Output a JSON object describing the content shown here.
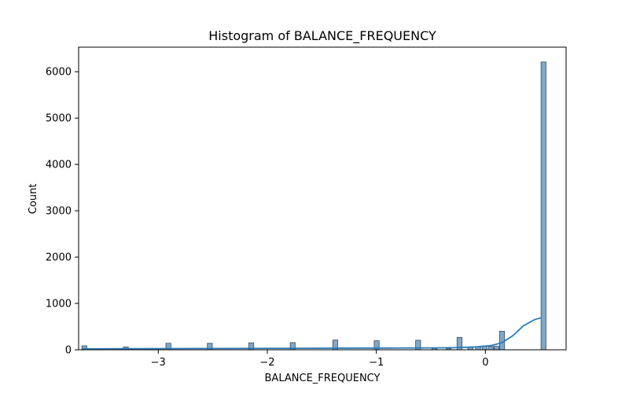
{
  "chart_data": {
    "type": "bar",
    "title": "Histogram of BALANCE_FREQUENCY",
    "xlabel": "BALANCE_FREQUENCY",
    "ylabel": "Count",
    "xlim": [
      -3.73,
      0.74
    ],
    "ylim": [
      0,
      6530
    ],
    "xticks": [
      -3,
      -2,
      -1,
      0
    ],
    "xtick_labels": [
      "−3",
      "−2",
      "−1",
      "0"
    ],
    "yticks": [
      0,
      1000,
      2000,
      3000,
      4000,
      5000,
      6000
    ],
    "ytick_labels": [
      "0",
      "1000",
      "2000",
      "3000",
      "4000",
      "5000",
      "6000"
    ],
    "bin_width": 0.0457,
    "bins": [
      {
        "x": -3.7,
        "count": 85
      },
      {
        "x": -3.32,
        "count": 60
      },
      {
        "x": -2.93,
        "count": 140
      },
      {
        "x": -2.55,
        "count": 140
      },
      {
        "x": -2.17,
        "count": 150
      },
      {
        "x": -1.79,
        "count": 155
      },
      {
        "x": -1.4,
        "count": 210
      },
      {
        "x": -1.02,
        "count": 195
      },
      {
        "x": -0.64,
        "count": 205
      },
      {
        "x": -0.49,
        "count": 30
      },
      {
        "x": -0.36,
        "count": 25
      },
      {
        "x": -0.26,
        "count": 265
      },
      {
        "x": -0.16,
        "count": 55
      },
      {
        "x": -0.09,
        "count": 70
      },
      {
        "x": -0.03,
        "count": 80
      },
      {
        "x": 0.03,
        "count": 70
      },
      {
        "x": 0.08,
        "count": 75
      },
      {
        "x": 0.13,
        "count": 400
      },
      {
        "x": 0.51,
        "count": 6210
      }
    ],
    "kde": [
      [
        -3.7,
        20
      ],
      [
        -3.3,
        22
      ],
      [
        -2.9,
        25
      ],
      [
        -2.5,
        28
      ],
      [
        -2.1,
        30
      ],
      [
        -1.7,
        32
      ],
      [
        -1.3,
        35
      ],
      [
        -0.9,
        37
      ],
      [
        -0.5,
        40
      ],
      [
        -0.3,
        45
      ],
      [
        -0.1,
        60
      ],
      [
        0.05,
        90
      ],
      [
        0.15,
        150
      ],
      [
        0.25,
        300
      ],
      [
        0.35,
        520
      ],
      [
        0.45,
        650
      ],
      [
        0.51,
        690
      ]
    ],
    "colors": {
      "bar_fill": "#7fa8c9",
      "bar_edge": "#3b4a56",
      "kde_line": "#2b7bba",
      "axis": "#000000"
    },
    "grid": false,
    "legend": "none"
  }
}
